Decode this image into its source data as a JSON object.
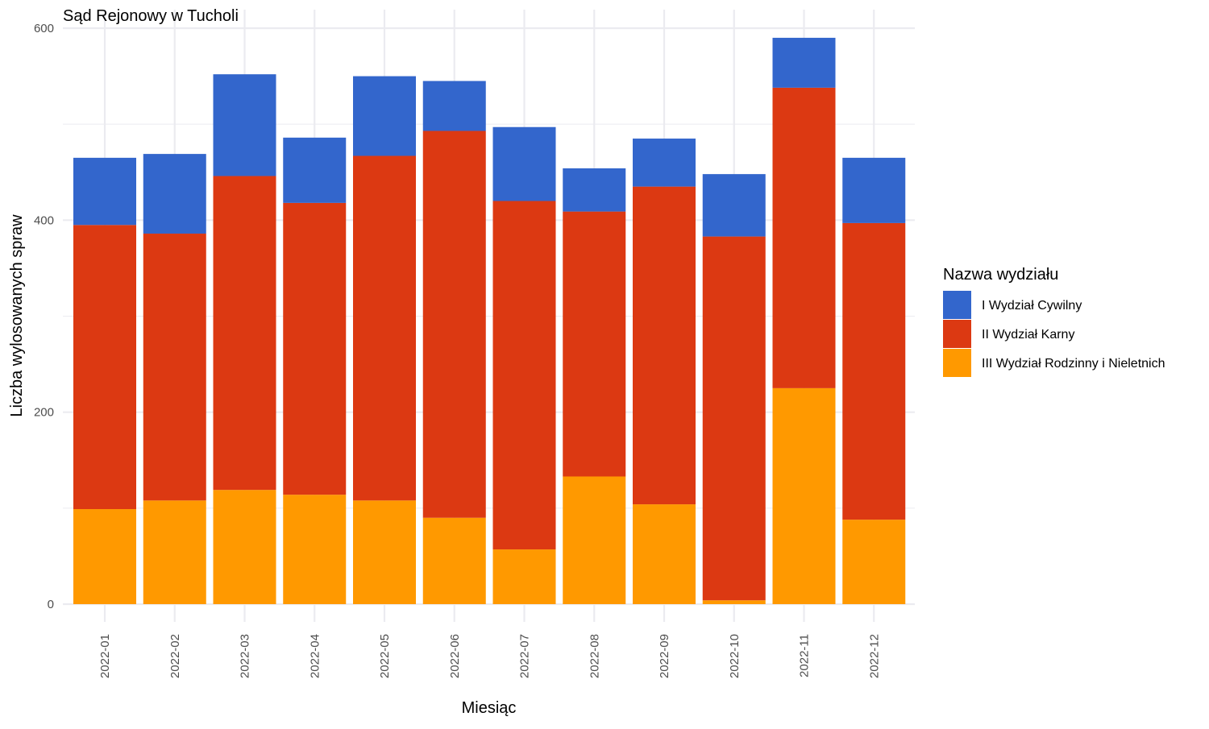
{
  "chart_data": {
    "type": "bar",
    "stacked": true,
    "title": "Sąd Rejonowy w Tucholi",
    "xlabel": "Miesiąc",
    "ylabel": "Liczba wylosowanych spraw",
    "ylim": [
      0,
      600
    ],
    "yticks": [
      0,
      200,
      400,
      600
    ],
    "grid": true,
    "legend": {
      "title": "Nazwa wydziału",
      "position": "right"
    },
    "categories": [
      "2022-01",
      "2022-02",
      "2022-03",
      "2022-04",
      "2022-05",
      "2022-06",
      "2022-07",
      "2022-08",
      "2022-09",
      "2022-10",
      "2022-11",
      "2022-12"
    ],
    "series": [
      {
        "name": "III Wydział Rodzinny i Nieletnich",
        "color": "#FF9900",
        "values": [
          99,
          108,
          119,
          114,
          108,
          90,
          57,
          133,
          104,
          4,
          225,
          88
        ]
      },
      {
        "name": "II Wydział Karny",
        "color": "#DC3912",
        "values": [
          296,
          278,
          327,
          304,
          359,
          403,
          363,
          276,
          331,
          379,
          313,
          309
        ]
      },
      {
        "name": "I Wydział Cywilny",
        "color": "#3366CC",
        "values": [
          70,
          83,
          106,
          68,
          83,
          52,
          77,
          45,
          50,
          65,
          52,
          68
        ]
      }
    ]
  }
}
